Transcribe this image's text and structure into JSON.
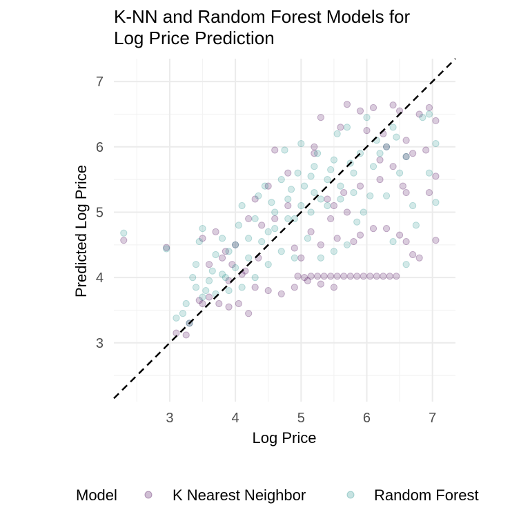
{
  "chart_data": {
    "type": "scatter",
    "title": "K-NN and Random Forest Models for Log Price Prediction",
    "title_lines": [
      "K-NN and Random Forest Models for",
      "Log Price Prediction"
    ],
    "xlabel": "Log Price",
    "ylabel": "Predicted Log Price",
    "xlim": [
      2.15,
      7.35
    ],
    "ylim": [
      2.1,
      7.35
    ],
    "x_ticks": [
      3,
      4,
      5,
      6,
      7
    ],
    "y_ticks": [
      3,
      4,
      5,
      6,
      7
    ],
    "x_tick_labels": [
      "3",
      "4",
      "5",
      "6",
      "7"
    ],
    "y_tick_labels": [
      "3",
      "4",
      "5",
      "6",
      "7"
    ],
    "grid": true,
    "legend": {
      "position": "bottom",
      "title": "Model",
      "entries": [
        "K Nearest Neighbor",
        "Random Forest"
      ]
    },
    "reference_line": {
      "slope": 1,
      "intercept": 0,
      "style": "dashed",
      "color": "#000000"
    },
    "series": [
      {
        "name": "K Nearest Neighbor",
        "color": "#440154",
        "opacity": 0.2,
        "points": [
          [
            2.3,
            4.57
          ],
          [
            2.95,
            4.46
          ],
          [
            3.1,
            3.15
          ],
          [
            3.25,
            3.12
          ],
          [
            3.3,
            3.3
          ],
          [
            3.45,
            3.65
          ],
          [
            3.5,
            3.6
          ],
          [
            3.6,
            3.7
          ],
          [
            3.75,
            3.6
          ],
          [
            3.9,
            3.55
          ],
          [
            4.05,
            3.6
          ],
          [
            4.2,
            3.45
          ],
          [
            3.5,
            4.6
          ],
          [
            3.7,
            4.7
          ],
          [
            3.85,
            4.4
          ],
          [
            3.95,
            4.2
          ],
          [
            4.1,
            4.05
          ],
          [
            4.3,
            3.85
          ],
          [
            4.5,
            3.8
          ],
          [
            4.7,
            3.75
          ],
          [
            4.9,
            3.85
          ],
          [
            5.1,
            3.95
          ],
          [
            5.3,
            3.9
          ],
          [
            5.5,
            3.85
          ],
          [
            4.3,
            5.2
          ],
          [
            4.5,
            5.4
          ],
          [
            4.6,
            5.95
          ],
          [
            4.8,
            5.6
          ],
          [
            4.9,
            4.45
          ],
          [
            5.0,
            4.3
          ],
          [
            5.15,
            4.7
          ],
          [
            5.3,
            4.5
          ],
          [
            5.45,
            4.9
          ],
          [
            5.55,
            4.6
          ],
          [
            5.65,
            5.3
          ],
          [
            5.2,
            6.0
          ],
          [
            5.3,
            6.45
          ],
          [
            5.6,
            6.3
          ],
          [
            5.7,
            6.65
          ],
          [
            5.9,
            6.55
          ],
          [
            6.0,
            6.25
          ],
          [
            6.1,
            6.6
          ],
          [
            6.25,
            6.2
          ],
          [
            6.4,
            6.64
          ],
          [
            6.5,
            6.55
          ],
          [
            6.6,
            6.1
          ],
          [
            6.8,
            6.5
          ],
          [
            6.95,
            6.6
          ],
          [
            7.05,
            6.4
          ],
          [
            7.05,
            5.55
          ],
          [
            7.05,
            4.57
          ],
          [
            6.95,
            5.3
          ],
          [
            6.9,
            5.95
          ],
          [
            6.7,
            5.9
          ],
          [
            6.55,
            5.4
          ],
          [
            6.6,
            5.3
          ],
          [
            6.5,
            4.65
          ],
          [
            6.7,
            4.35
          ],
          [
            6.8,
            4.3
          ],
          [
            6.6,
            4.55
          ],
          [
            6.3,
            4.75
          ],
          [
            6.1,
            4.75
          ],
          [
            5.9,
            4.65
          ],
          [
            5.8,
            4.55
          ],
          [
            5.75,
            4.02
          ],
          [
            5.85,
            4.02
          ],
          [
            5.95,
            4.02
          ],
          [
            6.05,
            4.02
          ],
          [
            6.15,
            4.02
          ],
          [
            6.25,
            4.02
          ],
          [
            6.35,
            4.02
          ],
          [
            6.45,
            4.02
          ],
          [
            5.65,
            4.02
          ],
          [
            5.55,
            4.02
          ],
          [
            5.45,
            4.02
          ],
          [
            5.35,
            4.02
          ],
          [
            5.25,
            4.02
          ],
          [
            5.15,
            4.02
          ],
          [
            5.05,
            4.0
          ],
          [
            4.95,
            4.02
          ],
          [
            5.2,
            5.9
          ],
          [
            5.4,
            5.2
          ],
          [
            5.5,
            5.1
          ],
          [
            5.7,
            5.0
          ],
          [
            5.9,
            5.4
          ],
          [
            6.2,
            5.5
          ],
          [
            6.4,
            5.7
          ],
          [
            6.3,
            6.0
          ],
          [
            6.6,
            5.85
          ],
          [
            6.2,
            5.8
          ],
          [
            4.4,
            4.8
          ],
          [
            4.6,
            4.9
          ],
          [
            4.8,
            5.1
          ],
          [
            4.0,
            4.5
          ],
          [
            4.2,
            4.9
          ],
          [
            3.8,
            4.3
          ],
          [
            3.6,
            4.2
          ],
          [
            3.9,
            3.95
          ],
          [
            4.15,
            4.1
          ],
          [
            4.35,
            4.3
          ]
        ]
      },
      {
        "name": "Random Forest",
        "color": "#21908C",
        "opacity": 0.2,
        "points": [
          [
            2.3,
            4.68
          ],
          [
            2.95,
            4.44
          ],
          [
            3.1,
            3.38
          ],
          [
            3.2,
            3.45
          ],
          [
            3.25,
            3.6
          ],
          [
            3.3,
            3.3
          ],
          [
            3.35,
            4.0
          ],
          [
            3.4,
            4.2
          ],
          [
            3.45,
            4.55
          ],
          [
            3.5,
            4.75
          ],
          [
            3.55,
            3.8
          ],
          [
            3.65,
            4.1
          ],
          [
            3.7,
            4.35
          ],
          [
            3.8,
            4.6
          ],
          [
            3.85,
            4.0
          ],
          [
            3.9,
            4.4
          ],
          [
            4.0,
            4.5
          ],
          [
            4.05,
            4.8
          ],
          [
            4.1,
            5.1
          ],
          [
            4.2,
            4.6
          ],
          [
            4.3,
            4.9
          ],
          [
            4.35,
            5.25
          ],
          [
            4.45,
            5.4
          ],
          [
            4.5,
            4.7
          ],
          [
            4.6,
            5.0
          ],
          [
            4.7,
            5.5
          ],
          [
            4.75,
            5.95
          ],
          [
            4.8,
            5.2
          ],
          [
            4.9,
            4.9
          ],
          [
            4.95,
            5.6
          ],
          [
            5.0,
            6.05
          ],
          [
            5.05,
            5.4
          ],
          [
            5.15,
            5.0
          ],
          [
            5.2,
            5.7
          ],
          [
            5.25,
            5.9
          ],
          [
            5.3,
            5.2
          ],
          [
            5.4,
            5.5
          ],
          [
            5.5,
            5.8
          ],
          [
            5.6,
            5.4
          ],
          [
            5.55,
            6.2
          ],
          [
            5.7,
            6.3
          ],
          [
            5.8,
            5.6
          ],
          [
            5.9,
            5.9
          ],
          [
            6.0,
            6.45
          ],
          [
            6.1,
            5.7
          ],
          [
            6.2,
            5.9
          ],
          [
            6.3,
            6.0
          ],
          [
            6.4,
            6.3
          ],
          [
            6.5,
            5.6
          ],
          [
            6.6,
            5.85
          ],
          [
            6.7,
            5.1
          ],
          [
            6.75,
            4.8
          ],
          [
            6.85,
            6.45
          ],
          [
            6.95,
            6.5
          ],
          [
            7.05,
            6.05
          ],
          [
            7.05,
            5.15
          ],
          [
            6.95,
            5.6
          ],
          [
            6.6,
            4.2
          ],
          [
            6.4,
            4.55
          ],
          [
            6.3,
            5.25
          ],
          [
            6.05,
            5.25
          ],
          [
            5.95,
            5.0
          ],
          [
            5.85,
            4.85
          ],
          [
            5.7,
            4.5
          ],
          [
            5.5,
            4.4
          ],
          [
            5.3,
            4.3
          ],
          [
            5.1,
            4.6
          ],
          [
            4.9,
            4.3
          ],
          [
            4.7,
            4.4
          ],
          [
            4.5,
            4.2
          ],
          [
            4.3,
            4.0
          ],
          [
            4.1,
            3.85
          ],
          [
            3.9,
            3.8
          ],
          [
            3.7,
            3.75
          ],
          [
            3.5,
            3.7
          ],
          [
            4.4,
            4.55
          ],
          [
            4.6,
            4.75
          ],
          [
            4.8,
            4.9
          ],
          [
            5.0,
            5.1
          ],
          [
            5.2,
            5.3
          ],
          [
            5.4,
            5.1
          ],
          [
            5.6,
            5.2
          ],
          [
            5.8,
            5.3
          ],
          [
            4.2,
            4.3
          ],
          [
            4.0,
            4.15
          ],
          [
            3.8,
            4.05
          ],
          [
            3.6,
            3.95
          ],
          [
            3.4,
            3.85
          ],
          [
            4.55,
            5.15
          ],
          [
            4.85,
            5.35
          ],
          [
            5.15,
            5.55
          ],
          [
            5.45,
            5.65
          ],
          [
            5.75,
            5.75
          ],
          [
            6.15,
            6.1
          ],
          [
            6.45,
            6.15
          ]
        ]
      }
    ]
  }
}
